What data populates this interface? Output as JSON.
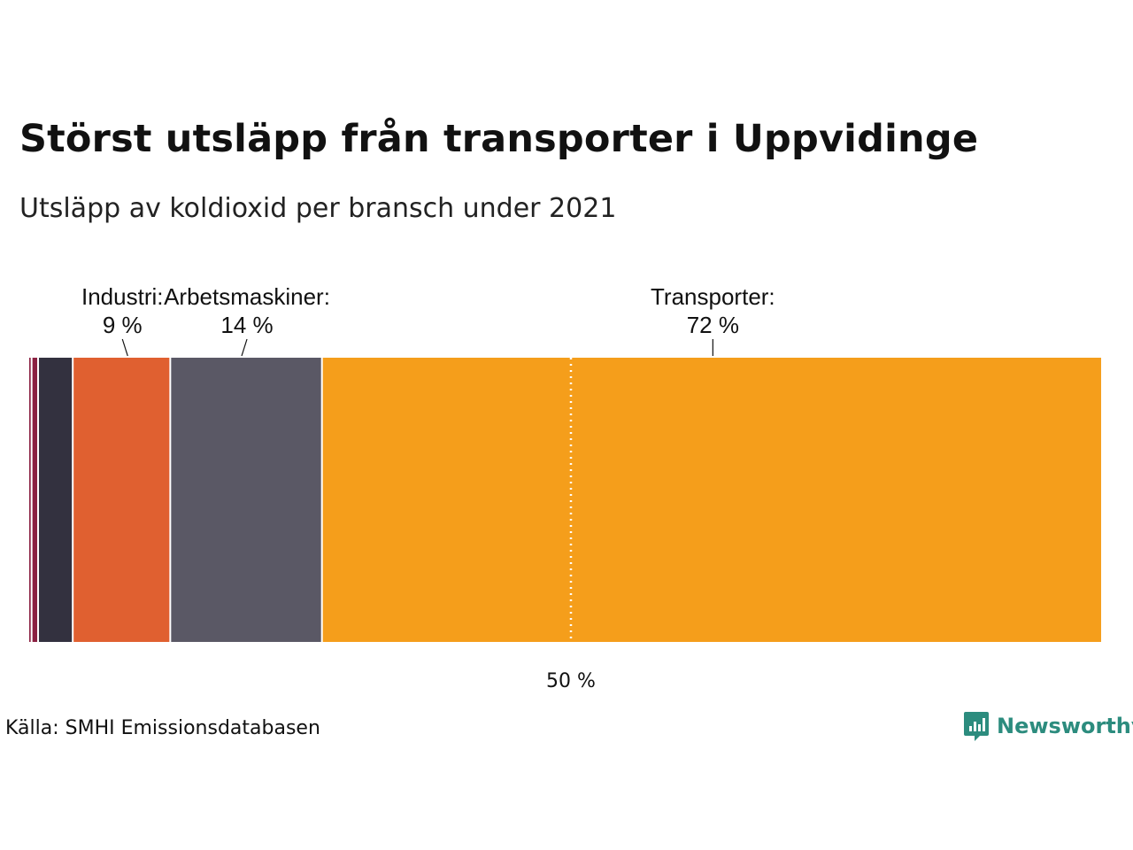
{
  "title": "Störst utsläpp från transporter i Uppvidinge",
  "subtitle": "Utsläpp av koldioxid per bransch under 2021",
  "source": "Källa: SMHI Emissionsdatabasen",
  "brand": {
    "name": "Newsworthy",
    "icon": "newsworthy-logo-icon"
  },
  "colors": {
    "transport": "#f59e1b",
    "machinery": "#5a5865",
    "industry": "#e06030",
    "dark": "#33313f",
    "wine": "#8b2142",
    "reference_line": "#ffffff"
  },
  "chart_data": {
    "type": "bar",
    "orientation": "horizontal-stacked",
    "unit": "%",
    "xlim": [
      0,
      100
    ],
    "segments": [
      {
        "value": 0.3,
        "color": "#8b2142",
        "label": "",
        "value_label": ""
      },
      {
        "value": 0.6,
        "color": "#8b2142",
        "label": "",
        "value_label": ""
      },
      {
        "value": 3.2,
        "color": "#33313f",
        "label": "",
        "value_label": ""
      },
      {
        "value": 9,
        "color": "#e06030",
        "label": "Industri:",
        "value_label": "9 %"
      },
      {
        "value": 14,
        "color": "#5a5865",
        "label": "Arbetsmaskiner:",
        "value_label": "14 %"
      },
      {
        "value": 72,
        "color": "#f59e1b",
        "label": "Transporter:",
        "value_label": "72 %"
      }
    ],
    "reference_line": {
      "value": 50,
      "label": "50 %"
    }
  }
}
